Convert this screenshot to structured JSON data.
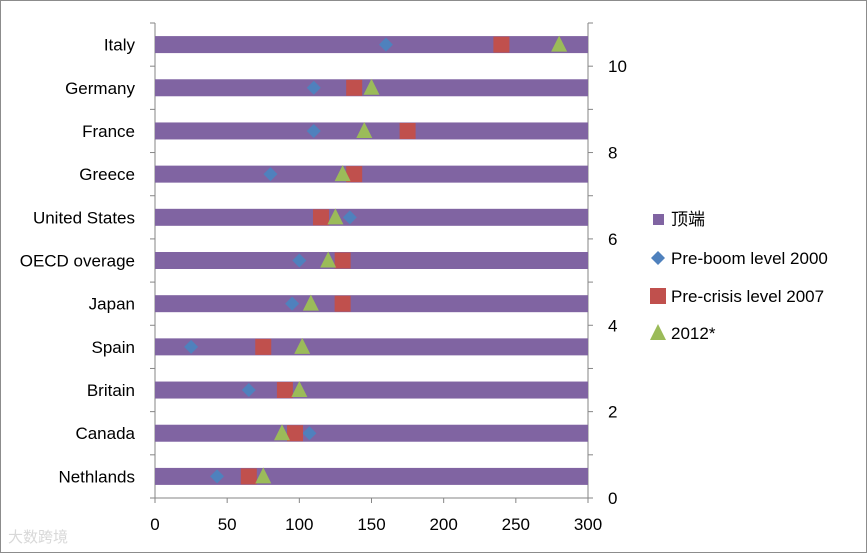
{
  "chart_data": {
    "type": "scatter",
    "categories": [
      "Italy",
      "Germany",
      "France",
      "Greece",
      "United States",
      "OECD overage",
      "Japan",
      "Spain",
      "Britain",
      "Canada",
      "Nethlands"
    ],
    "bar_series": {
      "name": "顶端",
      "color": "#8064a2",
      "value": 300
    },
    "series": [
      {
        "name": "Pre-boom level 2000",
        "marker": "diamond",
        "color": "#4f81bd",
        "values": [
          160,
          110,
          110,
          80,
          135,
          100,
          95,
          25,
          65,
          107,
          43
        ]
      },
      {
        "name": "Pre-crisis level 2007",
        "marker": "square",
        "color": "#c0504d",
        "values": [
          240,
          138,
          175,
          138,
          115,
          130,
          130,
          75,
          90,
          97,
          65
        ]
      },
      {
        "name": "2012*",
        "marker": "triangle",
        "color": "#9bbb59",
        "values": [
          280,
          150,
          145,
          130,
          125,
          120,
          108,
          102,
          100,
          88,
          75
        ]
      }
    ],
    "xlim": [
      0,
      300
    ],
    "xticks": [
      "0",
      "50",
      "100",
      "150",
      "200",
      "250",
      "300"
    ],
    "y2lim": [
      0,
      11
    ],
    "y2ticks": [
      "0",
      "2",
      "4",
      "6",
      "8",
      "10"
    ],
    "legend_position": "right"
  },
  "watermark": "大数跨境"
}
